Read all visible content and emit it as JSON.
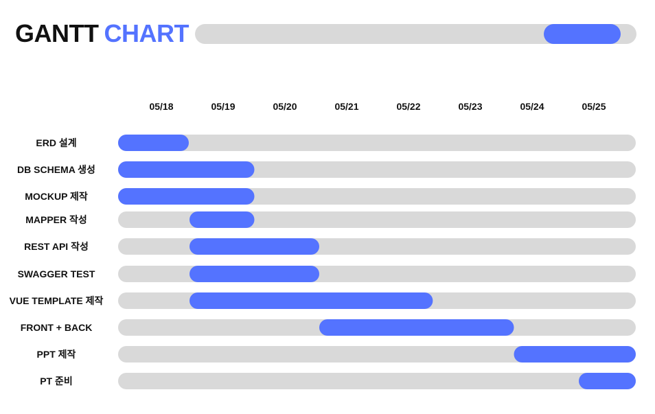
{
  "header": {
    "title_main": "GANTT",
    "title_accent": "CHART",
    "progress_start": 0.79,
    "progress_end": 0.965
  },
  "colors": {
    "accent": "#5473ff",
    "track": "#d9d9d9",
    "text": "#111111"
  },
  "chart_data": {
    "type": "gantt",
    "dates": [
      "05/18",
      "05/19",
      "05/20",
      "05/21",
      "05/22",
      "05/23",
      "05/24",
      "05/25"
    ],
    "x_range": [
      0,
      8
    ],
    "tasks": [
      {
        "label": "ERD 설계",
        "start": 0,
        "end": 1
      },
      {
        "label": "DB SCHEMA 생성",
        "start": 0,
        "end": 2
      },
      {
        "label": "MOCKUP 제작",
        "start": 0,
        "end": 2
      },
      {
        "label": "MAPPER 작성",
        "start": 1,
        "end": 2
      },
      {
        "label": "REST API 작성",
        "start": 1,
        "end": 3
      },
      {
        "label": "SWAGGER TEST",
        "start": 1,
        "end": 3
      },
      {
        "label": "VUE TEMPLATE 제작",
        "start": 1,
        "end": 4.75
      },
      {
        "label": "FRONT + BACK",
        "start": 3,
        "end": 6
      },
      {
        "label": "PPT 제작",
        "start": 6,
        "end": 8
      },
      {
        "label": "PT 준비",
        "start": 7,
        "end": 8
      }
    ]
  }
}
